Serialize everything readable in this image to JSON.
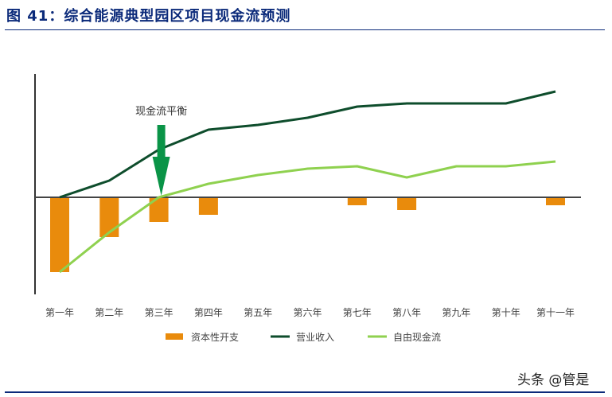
{
  "header": {
    "title": "图 41：综合能源典型园区项目现金流预测"
  },
  "footer": {
    "watermark": "头条 @管是"
  },
  "chart_data": {
    "type": "bar+line",
    "title": "图 41：综合能源典型园区项目现金流预测",
    "xlabel": "",
    "ylabel": "",
    "note": "No y-axis ticks shown; values are relative (pixel units above/below zero line).",
    "categories": [
      "第一年",
      "第二年",
      "第三年",
      "第四年",
      "第五年",
      "第六年",
      "第七年",
      "第八年",
      "第九年",
      "第十年",
      "第十一年"
    ],
    "series": [
      {
        "name": "资本性开支",
        "type": "bar",
        "color": "#e98b0c",
        "values": [
          -94,
          -50,
          -31,
          -22,
          0,
          0,
          -10,
          -16,
          0,
          0,
          -10
        ]
      },
      {
        "name": "营业收入",
        "type": "line",
        "color": "#0e4d2c",
        "values": [
          0,
          21,
          60,
          85,
          91,
          100,
          114,
          118,
          118,
          118,
          133
        ]
      },
      {
        "name": "自由现金流",
        "type": "line",
        "color": "#8fd14f",
        "values": [
          -94,
          -44,
          0,
          17,
          28,
          36,
          39,
          25,
          39,
          39,
          45
        ]
      }
    ],
    "annotations": [
      {
        "text": "现金流平衡",
        "category": "第三年",
        "arrow_color": "#0a9447"
      }
    ],
    "legend_position": "bottom",
    "grid": false
  }
}
